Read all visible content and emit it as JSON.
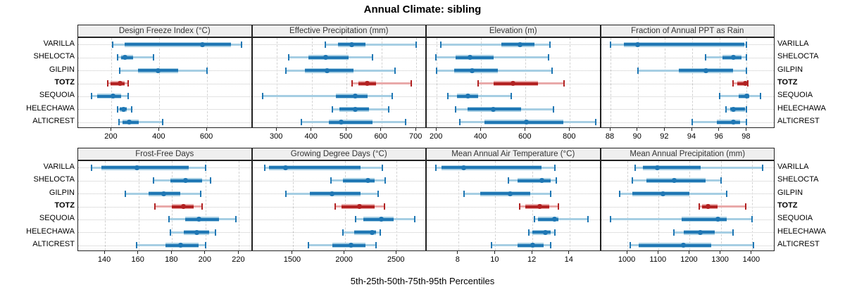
{
  "title": "Annual Climate: sibling",
  "footer": "5th-25th-50th-75th-95th Percentiles",
  "sites": [
    "VARILLA",
    "SHELOCTA",
    "GILPIN",
    "TOTZ",
    "SEQUOIA",
    "HELECHAWA",
    "ALTICREST"
  ],
  "highlight_site": "TOTZ",
  "colors": {
    "series": "#1f77b4",
    "series_light": "#a6cee3",
    "highlight": "#b22222",
    "highlight_light": "#e9a9a9",
    "header_bg": "#efefef",
    "grid": "#d2d2d2",
    "border": "#222222"
  },
  "chart_data": {
    "type": "interval-dotplot",
    "percentiles": [
      5,
      25,
      50,
      75,
      95
    ],
    "layout": "2 rows x 4 columns, shared site axis, alternating left/right site labels",
    "panels": [
      {
        "title": "Design Freeze Index (°C)",
        "ticks": [
          200,
          400,
          600
        ],
        "range": [
          60,
          790
        ],
        "series": [
          {
            "name": "VARILLA",
            "values": [
              205,
              255,
              580,
              700,
              745
            ]
          },
          {
            "name": "SHELOCTA",
            "values": [
              225,
              240,
              255,
              290,
              375
            ]
          },
          {
            "name": "GILPIN",
            "values": [
              235,
              310,
              395,
              480,
              600
            ]
          },
          {
            "name": "TOTZ",
            "values": [
              185,
              195,
              235,
              255,
              270
            ]
          },
          {
            "name": "SEQUOIA",
            "values": [
              115,
              140,
              205,
              240,
              268
            ]
          },
          {
            "name": "HELECHAWA",
            "values": [
              225,
              235,
              250,
              265,
              285
            ]
          },
          {
            "name": "ALTICREST",
            "values": [
              230,
              245,
              275,
              315,
              415
            ]
          }
        ]
      },
      {
        "title": "Effective Precipitation (mm)",
        "ticks": [
          300,
          400,
          500,
          600,
          700
        ],
        "range": [
          230,
          730
        ],
        "series": [
          {
            "name": "VARILLA",
            "values": [
              440,
              475,
              515,
              555,
              700
            ]
          },
          {
            "name": "SHELOCTA",
            "values": [
              335,
              390,
              440,
              505,
              575
            ]
          },
          {
            "name": "GILPIN",
            "values": [
              325,
              380,
              445,
              520,
              640
            ]
          },
          {
            "name": "TOTZ",
            "values": [
              515,
              535,
              560,
              585,
              685
            ]
          },
          {
            "name": "SEQUOIA",
            "values": [
              260,
              470,
              525,
              560,
              630
            ]
          },
          {
            "name": "HELECHAWA",
            "values": [
              460,
              480,
              525,
              565,
              620
            ]
          },
          {
            "name": "ALTICREST",
            "values": [
              370,
              450,
              485,
              575,
              670
            ]
          }
        ]
      },
      {
        "title": "Elevation (m)",
        "ticks": [
          200,
          400,
          600,
          800
        ],
        "range": [
          155,
          940
        ],
        "series": [
          {
            "name": "VARILLA",
            "values": [
              220,
              490,
              575,
              640,
              710
            ]
          },
          {
            "name": "SHELOCTA",
            "values": [
              195,
              285,
              350,
              455,
              705
            ]
          },
          {
            "name": "GILPIN",
            "values": [
              200,
              280,
              360,
              475,
              720
            ]
          },
          {
            "name": "TOTZ",
            "values": [
              385,
              455,
              545,
              655,
              775
            ]
          },
          {
            "name": "SEQUOIA",
            "values": [
              250,
              290,
              340,
              385,
              535
            ]
          },
          {
            "name": "HELECHAWA",
            "values": [
              285,
              340,
              455,
              580,
              725
            ]
          },
          {
            "name": "ALTICREST",
            "values": [
              305,
              415,
              605,
              770,
              915
            ]
          }
        ]
      },
      {
        "title": "Fraction of Annual PPT as Rain",
        "ticks": [
          88,
          90,
          92,
          94,
          96,
          98
        ],
        "range": [
          87.3,
          100.1
        ],
        "series": [
          {
            "name": "VARILLA",
            "values": [
              88,
              89,
              90,
              97.8,
              98
            ]
          },
          {
            "name": "SHELOCTA",
            "values": [
              95,
              96.2,
              97,
              97.6,
              98
            ]
          },
          {
            "name": "GILPIN",
            "values": [
              90,
              93,
              95,
              97,
              98
            ]
          },
          {
            "name": "TOTZ",
            "values": [
              97,
              97.3,
              97.9,
              98,
              98.1
            ]
          },
          {
            "name": "SEQUOIA",
            "values": [
              96,
              97.4,
              98,
              98.2,
              99
            ]
          },
          {
            "name": "HELECHAWA",
            "values": [
              96.5,
              96.8,
              97,
              97.9,
              98
            ]
          },
          {
            "name": "ALTICREST",
            "values": [
              94,
              95.8,
              97,
              97.5,
              98
            ]
          }
        ]
      },
      {
        "title": "Frost-Free Days",
        "ticks": [
          140,
          160,
          180,
          200,
          220
        ],
        "range": [
          124,
          228
        ],
        "series": [
          {
            "name": "VARILLA",
            "values": [
              132,
              138,
              159,
              190,
              200
            ]
          },
          {
            "name": "SHELOCTA",
            "values": [
              169,
              179,
              188,
              198,
              203
            ]
          },
          {
            "name": "GILPIN",
            "values": [
              152,
              166,
              175,
              185,
              197
            ]
          },
          {
            "name": "TOTZ",
            "values": [
              170,
              180,
              187,
              193,
              198
            ]
          },
          {
            "name": "SEQUOIA",
            "values": [
              178,
              188,
              196,
              208,
              218
            ]
          },
          {
            "name": "HELECHAWA",
            "values": [
              179,
              187,
              195,
              202,
              206
            ]
          },
          {
            "name": "ALTICREST",
            "values": [
              159,
              176,
              185,
              196,
              200
            ]
          }
        ]
      },
      {
        "title": "Growing Degree Days (°C)",
        "ticks": [
          1500,
          2000,
          2500
        ],
        "range": [
          1110,
          2790
        ],
        "series": [
          {
            "name": "VARILLA",
            "values": [
              1230,
              1270,
              1430,
              2150,
              2360
            ]
          },
          {
            "name": "SHELOCTA",
            "values": [
              1870,
              1980,
              2225,
              2290,
              2390
            ]
          },
          {
            "name": "GILPIN",
            "values": [
              1430,
              1660,
              1880,
              2150,
              2320
            ]
          },
          {
            "name": "TOTZ",
            "values": [
              1905,
              1970,
              2140,
              2290,
              2385
            ]
          },
          {
            "name": "SEQUOIA",
            "values": [
              2105,
              2180,
              2350,
              2470,
              2675
            ]
          },
          {
            "name": "HELECHAWA",
            "values": [
              1985,
              2090,
              2265,
              2300,
              2345
            ]
          },
          {
            "name": "ALTICREST",
            "values": [
              1650,
              1880,
              2060,
              2200,
              2300
            ]
          }
        ]
      },
      {
        "title": "Mean Annual Air Temperature (°C)",
        "ticks": [
          8,
          10,
          12,
          14
        ],
        "range": [
          6.3,
          15.7
        ],
        "series": [
          {
            "name": "VARILLA",
            "values": [
              6.8,
              7.1,
              8.3,
              12.5,
              13.2
            ]
          },
          {
            "name": "SHELOCTA",
            "values": [
              10.7,
              11.2,
              12.5,
              13.0,
              13.3
            ]
          },
          {
            "name": "GILPIN",
            "values": [
              8.3,
              9.2,
              10.8,
              11.9,
              13.0
            ]
          },
          {
            "name": "TOTZ",
            "values": [
              11.3,
              11.6,
              12.4,
              12.9,
              13.4
            ]
          },
          {
            "name": "SEQUOIA",
            "values": [
              12.1,
              12.3,
              13.2,
              13.4,
              15.0
            ]
          },
          {
            "name": "HELECHAWA",
            "values": [
              11.8,
              12.0,
              12.7,
              13.0,
              13.2
            ]
          },
          {
            "name": "ALTICREST",
            "values": [
              9.8,
              11.2,
              12.0,
              12.6,
              13.0
            ]
          }
        ]
      },
      {
        "title": "Mean Annual Precipitation (mm)",
        "ticks": [
          1000,
          1100,
          1200,
          1300,
          1400
        ],
        "range": [
          915,
          1475
        ],
        "series": [
          {
            "name": "VARILLA",
            "values": [
              1025,
              1050,
              1095,
              1235,
              1435
            ]
          },
          {
            "name": "SHELOCTA",
            "values": [
              1015,
              1060,
              1150,
              1250,
              1300
            ]
          },
          {
            "name": "GILPIN",
            "values": [
              975,
              1015,
              1115,
              1200,
              1320
            ]
          },
          {
            "name": "TOTZ",
            "values": [
              1230,
              1240,
              1260,
              1290,
              1380
            ]
          },
          {
            "name": "SEQUOIA",
            "values": [
              945,
              1175,
              1290,
              1320,
              1400
            ]
          },
          {
            "name": "HELECHAWA",
            "values": [
              1150,
              1180,
              1235,
              1280,
              1340
            ]
          },
          {
            "name": "ALTICREST",
            "values": [
              1010,
              1035,
              1180,
              1270,
              1405
            ]
          }
        ]
      }
    ]
  }
}
